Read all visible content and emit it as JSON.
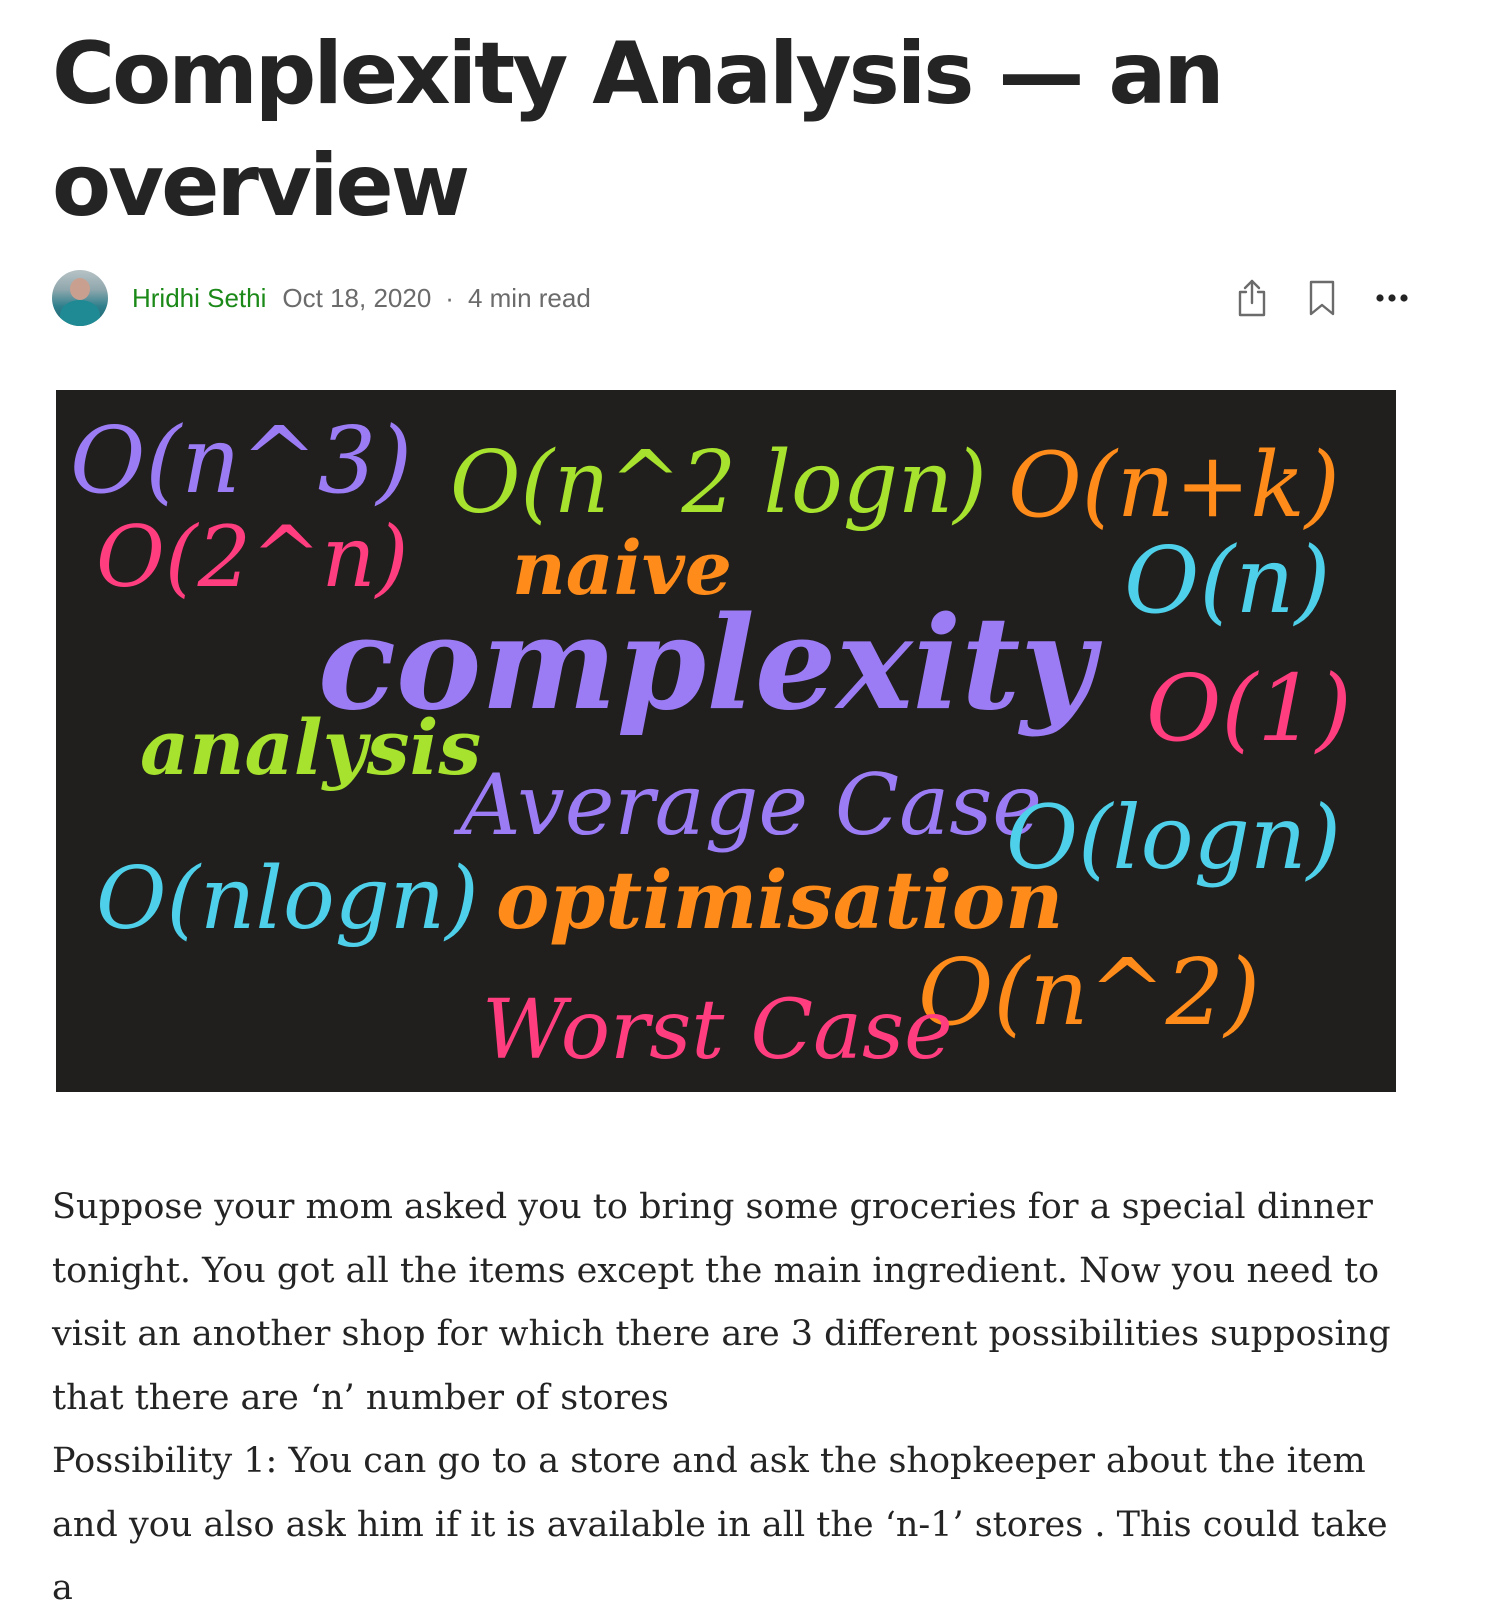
{
  "article": {
    "title": "Complexity Analysis — an overview",
    "author": "Hridhi Sethi",
    "date": "Oct 18, 2020",
    "separator": "·",
    "read_time": "4 min read"
  },
  "actions": {
    "icons": [
      "share-icon",
      "bookmark-icon",
      "more-icon"
    ]
  },
  "hero": {
    "words": {
      "w1": "O(n^3)",
      "w2": "O(n^2 logn)",
      "w3": "O(n+k)",
      "w4": "O(2^n)",
      "w5": "naive",
      "w6": "O(n)",
      "w7": "complexity",
      "w8": "O(1)",
      "w9": "analysis",
      "w10": "Average Case",
      "w11": "O(logn)",
      "w12": "O(nlogn)",
      "w13": "optimisation",
      "w14": "O(n^2)",
      "w15": "Worst Case"
    },
    "colors": {
      "purple": "#9b7cf5",
      "green": "#a6e22e",
      "orange": "#ff8c1a",
      "pink": "#ff3d7f",
      "cyan": "#4fd0ea",
      "background": "#201f1d"
    }
  },
  "body": {
    "paragraph1": "Suppose your mom asked you to bring some groceries for a special dinner tonight. You got all the items except the main ingredient. Now you need to visit an another shop for which there are 3 different possibilities supposing that there are ‘n’ number of stores",
    "paragraph2": "Possibility 1: You can go to a store and ask the shopkeeper about the item and you also ask him if it is available in all the ‘n-1’ stores . This could take a"
  }
}
